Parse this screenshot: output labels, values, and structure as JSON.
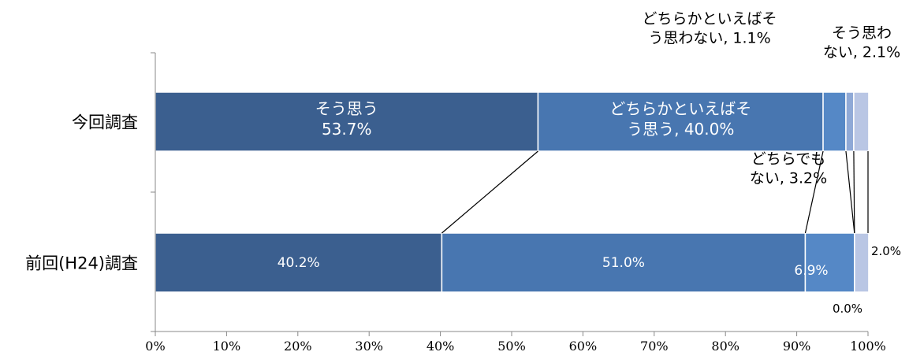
{
  "chart_data": {
    "type": "bar",
    "orientation": "horizontal",
    "stacked": "percent",
    "categories": [
      "今回調査",
      "前回(H24)調査"
    ],
    "series": [
      {
        "name": "そう思う",
        "values": [
          53.7,
          40.2
        ],
        "color": "#3b5f8f"
      },
      {
        "name": "どちらかといえばそう思う",
        "values": [
          40.0,
          51.0
        ],
        "color": "#4876b0"
      },
      {
        "name": "どちらでもない",
        "values": [
          3.2,
          6.9
        ],
        "color": "#5588c6"
      },
      {
        "name": "どちらかといえばそう思わない",
        "values": [
          1.1,
          0.0
        ],
        "color": "#8fa9d6"
      },
      {
        "name": "そう思わない",
        "values": [
          2.1,
          2.0
        ],
        "color": "#b9c6e4"
      }
    ],
    "xlim": [
      0,
      100
    ],
    "x_ticks": [
      "0%",
      "10%",
      "20%",
      "30%",
      "40%",
      "50%",
      "60%",
      "70%",
      "80%",
      "90%",
      "100%"
    ],
    "grid": false,
    "legend": "none",
    "labels": {
      "current": [
        {
          "lines": [
            "そう思う",
            "53.7%"
          ]
        },
        {
          "lines": [
            "どちらかといえばそ",
            "う思う, 40.0%"
          ]
        },
        {
          "lines": [
            "どちらでも",
            "ない, 3.2%"
          ]
        },
        {
          "lines": [
            "どちらかといえばそ",
            "う思わない, 1.1%"
          ]
        },
        {
          "lines": [
            "そう思わ",
            "ない, 2.1%"
          ]
        }
      ],
      "previous": [
        "40.2%",
        "51.0%",
        "6.9%",
        "0.0%",
        "2.0%"
      ]
    }
  }
}
